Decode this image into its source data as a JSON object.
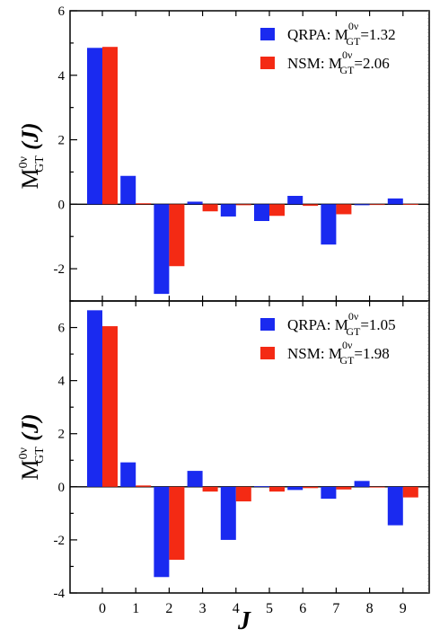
{
  "colors": {
    "series_a": "#1a2af0",
    "series_b": "#f42a14",
    "axis": "#000000",
    "background": "#ffffff"
  },
  "xlabel": "J",
  "chart_data": [
    {
      "type": "bar",
      "panel": "top",
      "categories": [
        "0",
        "1",
        "2",
        "3",
        "4",
        "5",
        "6",
        "7",
        "8",
        "9"
      ],
      "ylabel": {
        "main": "M",
        "sup": "0ν",
        "sub": "GT",
        "arg": "(J)"
      },
      "ylim": [
        -3.0,
        6.0
      ],
      "yticks": [
        -2,
        0,
        2,
        4,
        6
      ],
      "yticklabels": [
        "-2",
        "0",
        "2",
        "4",
        "6"
      ],
      "series": [
        {
          "name": "QRPA",
          "values": [
            4.85,
            0.88,
            -2.78,
            0.08,
            -0.38,
            -0.52,
            0.26,
            -1.25,
            -0.03,
            0.18
          ]
        },
        {
          "name": "NSM",
          "values": [
            4.88,
            0.03,
            -1.92,
            -0.22,
            -0.03,
            -0.36,
            -0.05,
            -0.31,
            -0.02,
            0.01
          ]
        }
      ],
      "legend": [
        {
          "prefix": "QRPA: M",
          "sup": "0ν",
          "sub": "GT",
          "value": "=1.32"
        },
        {
          "prefix": "NSM: M",
          "sup": "0ν",
          "sub": "GT",
          "value": "=2.06"
        }
      ],
      "legend_position": "top-right",
      "grid": false
    },
    {
      "type": "bar",
      "panel": "bottom",
      "categories": [
        "0",
        "1",
        "2",
        "3",
        "4",
        "5",
        "6",
        "7",
        "8",
        "9"
      ],
      "ylabel": {
        "main": "M",
        "sup": "0ν",
        "sub": "GT",
        "arg": "(J)"
      },
      "ylim": [
        -4.0,
        7.0
      ],
      "yticks": [
        -4,
        -2,
        0,
        2,
        4,
        6
      ],
      "yticklabels": [
        "-4",
        "-2",
        "0",
        "2",
        "4",
        "6"
      ],
      "series": [
        {
          "name": "QRPA",
          "values": [
            6.65,
            0.92,
            -3.4,
            0.6,
            -2.0,
            0.02,
            -0.12,
            -0.45,
            0.22,
            -1.45
          ]
        },
        {
          "name": "NSM",
          "values": [
            6.05,
            0.05,
            -2.75,
            -0.18,
            -0.55,
            -0.18,
            -0.05,
            -0.1,
            0.0,
            -0.4
          ]
        }
      ],
      "legend": [
        {
          "prefix": "QRPA: M",
          "sup": "0ν",
          "sub": "GT",
          "value": "=1.05"
        },
        {
          "prefix": "NSM: M",
          "sup": "0ν",
          "sub": "GT",
          "value": "=1.98"
        }
      ],
      "legend_position": "top-right",
      "grid": false
    }
  ]
}
